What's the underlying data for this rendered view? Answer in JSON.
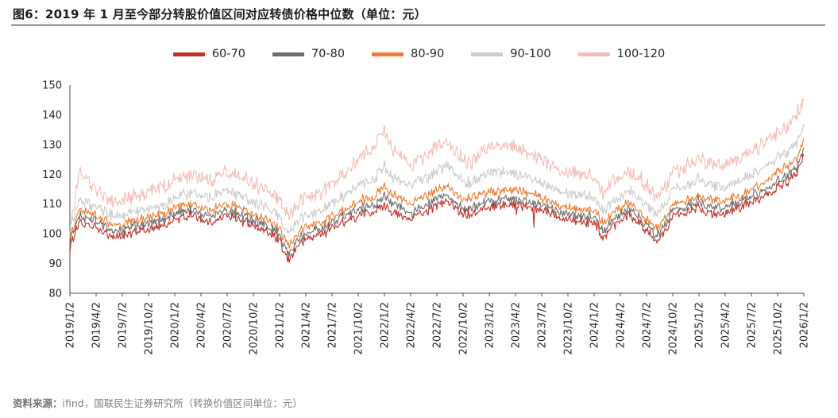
{
  "title": "图6：2019 年 1 月至今部分转股价值区间对应转债价格中位数（单位：元）",
  "footer": {
    "label": "资料来源：",
    "text": "ifind，国联民生证券研究所（转换价值区间单位：元）"
  },
  "chart_data": {
    "type": "line",
    "title": "2019 年 1 月至今部分转股价值区间对应转债价格中位数（单位：元）",
    "xlabel": "",
    "ylabel": "",
    "ylim": [
      80,
      150
    ],
    "yticks": [
      80,
      90,
      100,
      110,
      120,
      130,
      140,
      150
    ],
    "grid": false,
    "legend_position": "top",
    "x_unit": "months since 2019-01",
    "x_tick_labels": [
      "2019/1/2",
      "2019/4/2",
      "2019/7/2",
      "2019/10/2",
      "2020/1/2",
      "2020/4/2",
      "2020/7/2",
      "2020/10/2",
      "2021/1/2",
      "2021/4/2",
      "2021/7/2",
      "2021/10/2",
      "2022/1/2",
      "2022/4/2",
      "2022/7/2",
      "2022/10/2",
      "2023/1/2",
      "2023/4/2",
      "2023/7/2",
      "2023/10/2",
      "2024/1/2",
      "2024/4/2",
      "2024/7/2",
      "2024/10/2",
      "2025/1/2",
      "2025/4/2",
      "2025/7/2",
      "2025/10/2",
      "2026/1/2"
    ],
    "anchor_months": [
      0,
      1,
      2,
      3,
      5,
      6,
      8,
      9,
      11,
      12,
      14,
      16,
      18,
      20,
      21,
      23,
      24,
      25,
      26,
      27,
      29,
      30,
      32,
      33,
      35,
      36,
      37,
      39,
      41,
      43,
      45,
      46,
      48,
      50,
      51,
      53,
      54,
      56,
      57,
      59,
      60,
      61,
      63,
      64,
      66,
      67,
      68,
      69,
      71,
      72,
      73,
      75,
      77,
      78,
      80,
      81,
      83,
      84
    ],
    "series": [
      {
        "name": "60-70",
        "color": "#C0312A",
        "values": [
          95,
          104,
          103,
          102,
          99,
          99,
          101,
          101,
          103,
          105,
          106,
          104,
          106,
          104,
          103,
          100,
          97,
          91,
          96,
          98,
          100,
          102,
          105,
          106,
          108,
          110,
          107,
          105,
          108,
          111,
          107,
          107,
          109,
          110,
          110,
          108,
          108,
          106,
          105,
          104,
          104,
          99,
          105,
          107,
          101,
          97,
          100,
          106,
          108,
          109,
          107,
          107,
          109,
          111,
          113,
          116,
          119,
          126
        ]
      },
      {
        "name": "70-80",
        "color": "#6E6E6E",
        "values": [
          97,
          106,
          105,
          104,
          101,
          101,
          103,
          103,
          105,
          107,
          108,
          106,
          108,
          106,
          105,
          102,
          99,
          93,
          98,
          100,
          102,
          104,
          107,
          108,
          110,
          113,
          110,
          107,
          110,
          113,
          109,
          109,
          111,
          112,
          112,
          110,
          110,
          108,
          107,
          106,
          106,
          101,
          107,
          109,
          103,
          99,
          102,
          108,
          110,
          111,
          109,
          109,
          111,
          113,
          115,
          118,
          121,
          128
        ]
      },
      {
        "name": "80-90",
        "color": "#ED7D31",
        "values": [
          99,
          108,
          107,
          106,
          103,
          103,
          105,
          105,
          107,
          109,
          110,
          108,
          110,
          108,
          107,
          104,
          101,
          96,
          100,
          102,
          104,
          106,
          109,
          111,
          113,
          116,
          113,
          110,
          113,
          116,
          112,
          112,
          114,
          115,
          115,
          113,
          112,
          110,
          109,
          108,
          108,
          104,
          109,
          111,
          105,
          102,
          104,
          110,
          112,
          113,
          112,
          111,
          113,
          115,
          118,
          121,
          124,
          131
        ]
      },
      {
        "name": "90-100",
        "color": "#CBCBCB",
        "values": [
          101,
          112,
          110,
          109,
          106,
          106,
          108,
          108,
          110,
          112,
          114,
          112,
          115,
          112,
          111,
          108,
          105,
          100,
          104,
          106,
          108,
          110,
          114,
          116,
          119,
          123,
          119,
          116,
          119,
          123,
          118,
          117,
          121,
          121,
          120,
          118,
          117,
          115,
          114,
          113,
          112,
          108,
          113,
          115,
          110,
          106,
          109,
          115,
          117,
          119,
          117,
          116,
          118,
          120,
          123,
          126,
          129,
          136
        ]
      },
      {
        "name": "100-120",
        "color": "#F6BCB5",
        "values": [
          100,
          121,
          118,
          115,
          111,
          111,
          113,
          114,
          116,
          118,
          120,
          118,
          121,
          118,
          117,
          114,
          111,
          106,
          110,
          112,
          114,
          117,
          122,
          125,
          130,
          135,
          128,
          123,
          127,
          131,
          125,
          124,
          129,
          130,
          129,
          126,
          125,
          122,
          121,
          120,
          119,
          114,
          120,
          121,
          116,
          112,
          115,
          121,
          124,
          126,
          124,
          123,
          126,
          128,
          131,
          134,
          138,
          144
        ]
      }
    ]
  }
}
